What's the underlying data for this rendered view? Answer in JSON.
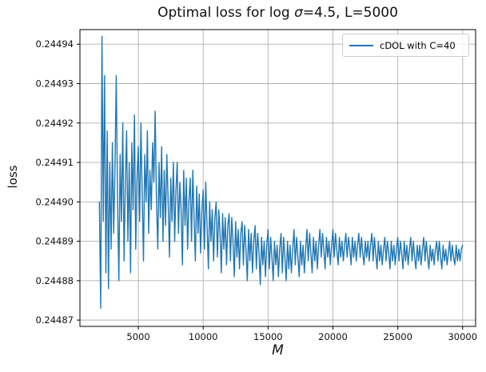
{
  "chart_data": {
    "type": "line",
    "title": "Optimal loss for log σ=4.5, L=5000",
    "title_parts": [
      "Optimal loss for log ",
      "σ",
      "=4.5, L=5000"
    ],
    "xlabel": "M",
    "ylabel": "loss",
    "xlim": [
      500,
      31000
    ],
    "ylim": [
      0.2448684,
      0.2449437
    ],
    "grid": true,
    "grid_color": "#b0b0b0",
    "spine_color": "#000000",
    "legend_position": "upper right",
    "x_ticks": [
      5000,
      10000,
      15000,
      20000,
      25000,
      30000
    ],
    "x_tick_labels": [
      "5000",
      "10000",
      "15000",
      "20000",
      "25000",
      "30000"
    ],
    "y_ticks": [
      0.24487,
      0.24488,
      0.24489,
      0.2449,
      0.24491,
      0.24492,
      0.24493,
      0.24494
    ],
    "y_tick_labels": [
      "0.24487",
      "0.24488",
      "0.24489",
      "0.24490",
      "0.24491",
      "0.24492",
      "0.24493",
      "0.24494"
    ],
    "series": [
      {
        "name": "cDOL with C=40",
        "color": "#1f77b4",
        "x_start": 2000,
        "x_step": 100,
        "y_base": 0.24487,
        "y_unit": 1e-06,
        "y_micro": [
          30,
          3,
          72,
          25,
          62,
          12,
          48,
          8,
          40,
          18,
          45,
          22,
          38,
          62,
          30,
          10,
          42,
          25,
          50,
          15,
          35,
          48,
          20,
          40,
          12,
          45,
          28,
          52,
          18,
          36,
          44,
          25,
          50,
          32,
          15,
          42,
          30,
          48,
          22,
          38,
          28,
          45,
          35,
          53,
          30,
          18,
          40,
          26,
          44,
          20,
          38,
          24,
          42,
          30,
          16,
          36,
          25,
          40,
          20,
          33,
          40,
          22,
          35,
          28,
          14,
          38,
          24,
          36,
          18,
          30,
          36,
          20,
          38,
          26,
          15,
          34,
          22,
          32,
          17,
          28,
          33,
          18,
          35,
          24,
          13,
          30,
          20,
          28,
          15,
          26,
          30,
          16,
          28,
          22,
          12,
          27,
          18,
          26,
          14,
          24,
          27,
          15,
          26,
          20,
          11,
          25,
          16,
          23,
          13,
          22,
          25,
          14,
          24,
          18,
          10,
          23,
          15,
          22,
          12,
          20,
          24,
          13,
          22,
          17,
          9,
          21,
          14,
          20,
          11,
          19,
          23,
          13,
          21,
          16,
          10,
          20,
          14,
          19,
          11,
          18,
          22,
          12,
          21,
          16,
          10,
          20,
          13,
          19,
          12,
          18,
          23,
          14,
          21,
          16,
          11,
          20,
          14,
          19,
          12,
          18,
          23,
          15,
          22,
          17,
          12,
          21,
          15,
          20,
          13,
          19,
          23,
          16,
          22,
          18,
          13,
          21,
          16,
          20,
          14,
          19,
          23,
          16,
          22,
          18,
          14,
          21,
          16,
          20,
          15,
          19,
          22,
          16,
          21,
          18,
          14,
          21,
          16,
          20,
          15,
          19,
          22,
          16,
          21,
          17,
          14,
          20,
          16,
          20,
          15,
          19,
          22,
          15,
          21,
          17,
          13,
          20,
          15,
          19,
          14,
          18,
          21,
          15,
          20,
          17,
          13,
          20,
          15,
          19,
          14,
          18,
          21,
          15,
          20,
          17,
          13,
          20,
          15,
          19,
          14,
          18,
          21,
          15,
          20,
          16,
          13,
          19,
          15,
          19,
          14,
          18,
          21,
          15,
          20,
          16,
          13,
          19,
          15,
          18,
          14,
          18,
          20,
          15,
          20,
          16,
          13,
          19,
          15,
          18,
          14,
          17,
          20,
          15,
          19,
          16,
          14,
          19,
          15,
          18,
          15,
          18,
          19
        ]
      }
    ]
  },
  "legend": {
    "label": "cDOL with C=40"
  }
}
